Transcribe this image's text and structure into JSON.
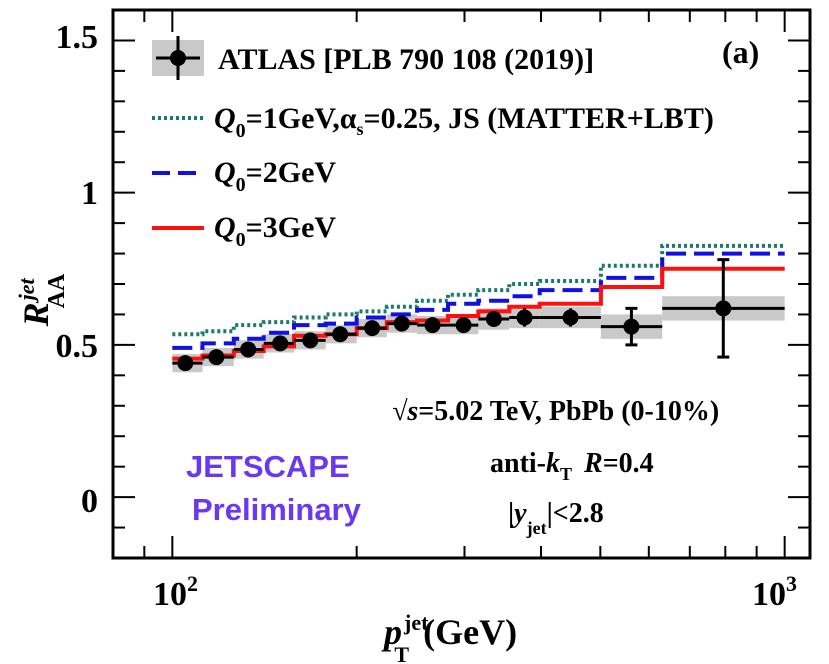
{
  "chart_data": {
    "type": "line",
    "panel_label": "(a)",
    "xscale": "log",
    "xlim": [
      80,
      1100
    ],
    "ylim": [
      -0.2,
      1.6
    ],
    "xlabel": {
      "main": "p",
      "sup": "jet",
      "sub": "T",
      "unit": "(GeV)"
    },
    "ylabel": {
      "main": "R",
      "sup": "jet",
      "sub": "AA"
    },
    "y_ticks": [
      {
        "value": 0,
        "label": "0"
      },
      {
        "value": 0.5,
        "label": "0.5"
      },
      {
        "value": 1,
        "label": "1"
      },
      {
        "value": 1.5,
        "label": "1.5"
      }
    ],
    "x_ticks": [
      {
        "value": 100,
        "label": "10",
        "exp": "2"
      },
      {
        "value": 1000,
        "label": "10",
        "exp": "3"
      }
    ],
    "legend": [
      {
        "label_main": "ATLAS [PLB 790 108 (2019)]",
        "style": "data"
      },
      {
        "q": "Q",
        "q_sub": "0",
        "rest1": "=1GeV,",
        "alpha": "α",
        "alpha_sub": "s",
        "rest2": "=0.25, JS (MATTER+LBT)",
        "color": "#1a7a6e",
        "style": "dotted"
      },
      {
        "q": "Q",
        "q_sub": "0",
        "rest1": "=2GeV",
        "color": "#1010e0",
        "style": "dashed"
      },
      {
        "q": "Q",
        "q_sub": "0",
        "rest1": "=3GeV",
        "color": "#ff1010",
        "style": "solid"
      }
    ],
    "annotations": {
      "energy_prefix": "√s",
      "energy_text": "=5.02 TeV, PbPb (0-10%)",
      "algo_prefix": "anti-",
      "algo_k": "k",
      "algo_sub": "T",
      "algo_R": "R",
      "algo_rest": "=0.4",
      "rapidity_pre": "|",
      "rapidity_y": "y",
      "rapidity_sub": "jet",
      "rapidity_post": "|<2.8",
      "jetscape_line1": "JETSCAPE",
      "jetscape_line2": "Preliminary",
      "jetscape_color": "#6b38f0"
    },
    "data": {
      "name": "ATLAS [PLB 790 108 (2019)]",
      "points": [
        {
          "x": 105,
          "xlo": 100,
          "xhi": 112,
          "y": 0.44,
          "stat": 0.015,
          "sys": 0.03
        },
        {
          "x": 118,
          "xlo": 112,
          "xhi": 126,
          "y": 0.46,
          "stat": 0.015,
          "sys": 0.03
        },
        {
          "x": 133,
          "xlo": 126,
          "xhi": 141,
          "y": 0.485,
          "stat": 0.015,
          "sys": 0.03
        },
        {
          "x": 150,
          "xlo": 141,
          "xhi": 158,
          "y": 0.505,
          "stat": 0.015,
          "sys": 0.03
        },
        {
          "x": 168,
          "xlo": 158,
          "xhi": 178,
          "y": 0.515,
          "stat": 0.015,
          "sys": 0.03
        },
        {
          "x": 188,
          "xlo": 178,
          "xhi": 200,
          "y": 0.535,
          "stat": 0.015,
          "sys": 0.03
        },
        {
          "x": 212,
          "xlo": 200,
          "xhi": 224,
          "y": 0.555,
          "stat": 0.015,
          "sys": 0.03
        },
        {
          "x": 237,
          "xlo": 224,
          "xhi": 251,
          "y": 0.57,
          "stat": 0.015,
          "sys": 0.03
        },
        {
          "x": 266,
          "xlo": 251,
          "xhi": 282,
          "y": 0.565,
          "stat": 0.015,
          "sys": 0.03
        },
        {
          "x": 299,
          "xlo": 282,
          "xhi": 316,
          "y": 0.565,
          "stat": 0.015,
          "sys": 0.03
        },
        {
          "x": 335,
          "xlo": 316,
          "xhi": 355,
          "y": 0.585,
          "stat": 0.02,
          "sys": 0.035
        },
        {
          "x": 376,
          "xlo": 355,
          "xhi": 398,
          "y": 0.59,
          "stat": 0.03,
          "sys": 0.035
        },
        {
          "x": 447,
          "xlo": 398,
          "xhi": 501,
          "y": 0.59,
          "stat": 0.03,
          "sys": 0.035
        },
        {
          "x": 562,
          "xlo": 501,
          "xhi": 631,
          "y": 0.56,
          "stat": 0.06,
          "sys": 0.04
        },
        {
          "x": 794,
          "xlo": 631,
          "xhi": 1000,
          "y": 0.62,
          "stat": 0.16,
          "sys": 0.04
        }
      ]
    },
    "bin_edges": [
      100,
      112,
      126,
      141,
      158,
      178,
      200,
      224,
      251,
      282,
      316,
      355,
      398,
      501,
      631,
      1000
    ],
    "series": [
      {
        "name": "Q0=1GeV",
        "color": "#1a7a6e",
        "style": "dotted",
        "values": [
          0.535,
          0.545,
          0.565,
          0.575,
          0.59,
          0.6,
          0.61,
          0.625,
          0.645,
          0.665,
          0.68,
          0.7,
          0.71,
          0.76,
          0.825
        ]
      },
      {
        "name": "Q0=2GeV",
        "color": "#1010e0",
        "style": "dashed",
        "values": [
          0.49,
          0.505,
          0.52,
          0.54,
          0.565,
          0.57,
          0.59,
          0.6,
          0.615,
          0.635,
          0.645,
          0.66,
          0.68,
          0.72,
          0.8
        ]
      },
      {
        "name": "Q0=3GeV",
        "color": "#ff1010",
        "style": "solid",
        "values": [
          0.455,
          0.465,
          0.48,
          0.495,
          0.53,
          0.535,
          0.555,
          0.575,
          0.58,
          0.595,
          0.61,
          0.625,
          0.635,
          0.69,
          0.75
        ]
      }
    ]
  }
}
